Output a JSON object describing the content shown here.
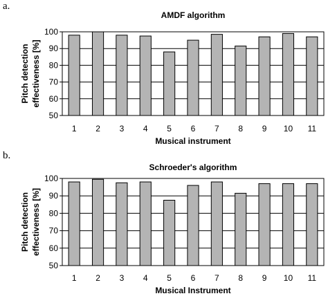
{
  "chart_data": [
    {
      "type": "bar",
      "panel": "a.",
      "title": "AMDF algorithm",
      "xlabel": "Musical instrument",
      "ylabel_lines": [
        "Pitch detection",
        "effectiveness [%]"
      ],
      "categories": [
        "1",
        "2",
        "3",
        "4",
        "5",
        "6",
        "7",
        "8",
        "9",
        "10",
        "11"
      ],
      "values": [
        98,
        100,
        98,
        97.5,
        88,
        95,
        98.5,
        91.5,
        97,
        99,
        97
      ],
      "ylim": [
        50,
        100
      ],
      "yticks": [
        50,
        60,
        70,
        80,
        90,
        100
      ],
      "grid": true,
      "colors": {
        "bar": "#b4b4b4",
        "outline": "#000000"
      }
    },
    {
      "type": "bar",
      "panel": "b.",
      "title": "Schroeder's algorithm",
      "xlabel": "Musical Instrument",
      "ylabel_lines": [
        "Pitch detection",
        "effectiveness [%]"
      ],
      "categories": [
        "1",
        "2",
        "3",
        "4",
        "5",
        "6",
        "7",
        "8",
        "9",
        "10",
        "11"
      ],
      "values": [
        98,
        99.5,
        97.5,
        98,
        87.5,
        96,
        98,
        91.5,
        97,
        97,
        97
      ],
      "ylim": [
        50,
        100
      ],
      "yticks": [
        50,
        60,
        70,
        80,
        90,
        100
      ],
      "grid": true,
      "colors": {
        "bar": "#b4b4b4",
        "outline": "#000000"
      }
    }
  ]
}
